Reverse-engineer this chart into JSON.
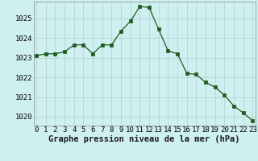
{
  "x": [
    0,
    1,
    2,
    3,
    4,
    5,
    6,
    7,
    8,
    9,
    10,
    11,
    12,
    13,
    14,
    15,
    16,
    17,
    18,
    19,
    20,
    21,
    22,
    23
  ],
  "y": [
    1023.1,
    1023.2,
    1023.2,
    1023.3,
    1023.65,
    1023.65,
    1023.2,
    1023.65,
    1023.65,
    1024.35,
    1024.85,
    1025.6,
    1025.55,
    1024.45,
    1023.35,
    1023.2,
    1022.2,
    1022.15,
    1021.75,
    1021.5,
    1021.1,
    1020.55,
    1020.2,
    1019.8
  ],
  "line_color": "#1e5c1e",
  "marker": "s",
  "marker_size": 2.2,
  "bg_color": "#cff0f0",
  "grid_color": "#b0cece",
  "title": "Graphe pression niveau de la mer (hPa)",
  "xlabel_ticks": [
    "0",
    "1",
    "2",
    "3",
    "4",
    "5",
    "6",
    "7",
    "8",
    "9",
    "10",
    "11",
    "12",
    "13",
    "14",
    "15",
    "16",
    "17",
    "18",
    "19",
    "20",
    "21",
    "22",
    "23"
  ],
  "yticks": [
    1020,
    1021,
    1022,
    1023,
    1024,
    1025
  ],
  "ylim": [
    1019.55,
    1025.85
  ],
  "xlim": [
    -0.3,
    23.3
  ],
  "title_fontsize": 7.5,
  "tick_fontsize": 6.5
}
